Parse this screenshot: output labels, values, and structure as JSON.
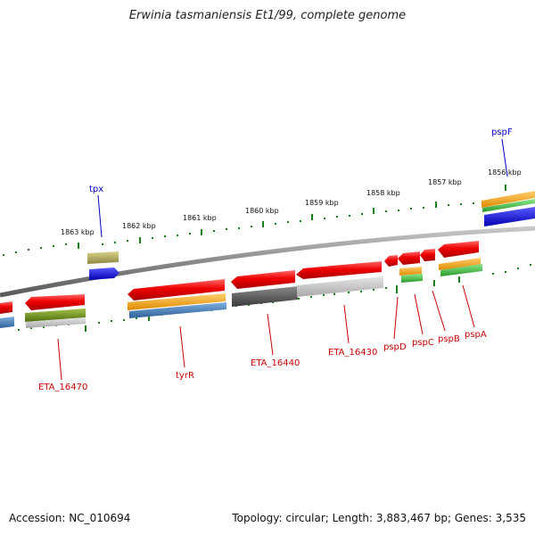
{
  "title": "Erwinia tasmaniensis Et1/99, complete genome",
  "accession_text": "Accession: NC_010694",
  "topology_text": "Topology: circular; Length: 3,883,467 bp; Genes: 3,535",
  "colors": {
    "backbone": "#8a8a8a",
    "tick": "#1a7f1a",
    "gene_red": "#ee0000",
    "cds_orange": "#f5a623",
    "cds_blue": "#3a7bbf",
    "cds_green": "#44bb44",
    "olive": "#6e8f20",
    "tan": "#b5ad62",
    "blue_feature": "#0000ee",
    "dark_gray": "#555555",
    "light_gray": "#c8c8c8",
    "label_red": "#cc0000",
    "label_blue": "#0000cc"
  },
  "scale_labels": [
    "1863 kbp",
    "1862 kbp",
    "1861 kbp",
    "1860 kbp",
    "1859 kbp",
    "1858 kbp",
    "1857 kbp",
    "1856 kbp"
  ],
  "gene_labels": {
    "tpx": "tpx",
    "pspF": "pspF",
    "ETA_16470": "ETA_16470",
    "tyrR": "tyrR",
    "ETA_16440": "ETA_16440",
    "ETA_16430": "ETA_16430",
    "pspD": "pspD",
    "pspC": "pspC",
    "pspB": "pspB",
    "pspA": "pspA"
  }
}
